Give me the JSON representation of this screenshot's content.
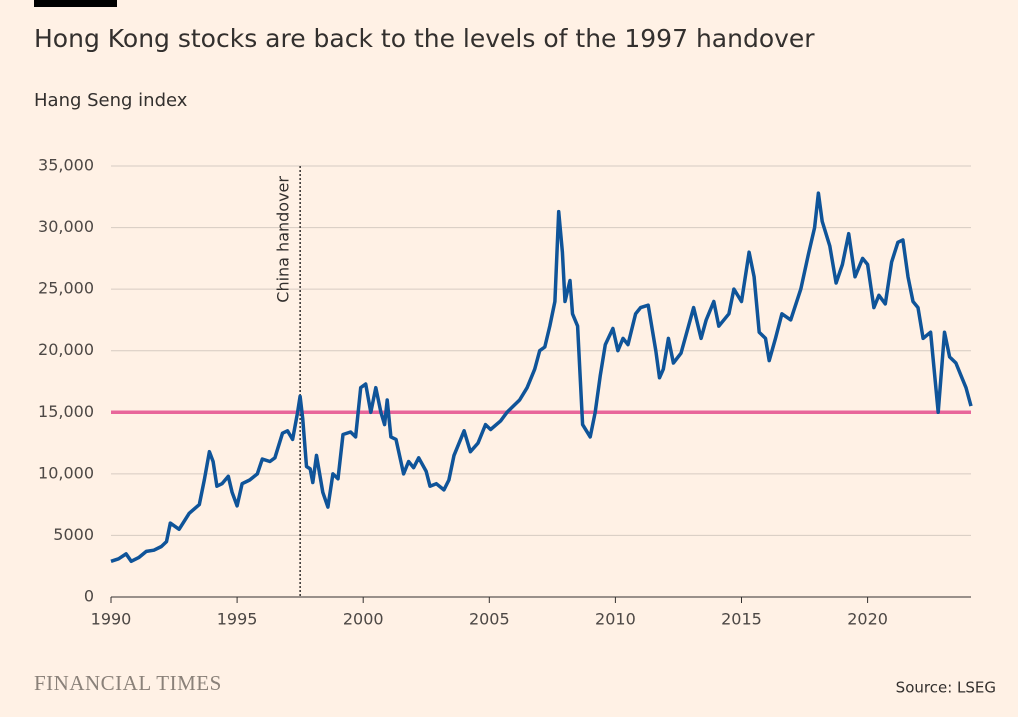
{
  "chart_data": {
    "type": "line",
    "title": "Hong Kong stocks are back to the levels of the 1997 handover",
    "subtitle": "Hang Seng index",
    "brand": "FINANCIAL TIMES",
    "source": "Source: LSEG",
    "annotation": {
      "x": 1997.5,
      "label": "China handover"
    },
    "reference_line": {
      "value": 15000,
      "color": "#e8669a"
    },
    "xlim": [
      1990,
      2024.1
    ],
    "xticks": [
      1990,
      1995,
      2000,
      2005,
      2010,
      2015,
      2020
    ],
    "ylim": [
      0,
      35000
    ],
    "yticks": [
      0,
      5000,
      {
        "value": 10000,
        "label": "10,000"
      },
      {
        "value": 15000,
        "label": "15,000"
      },
      {
        "value": 20000,
        "label": "20,000"
      },
      {
        "value": 25000,
        "label": "25,000"
      },
      {
        "value": 30000,
        "label": "30,000"
      },
      {
        "value": 35000,
        "label": "35,000"
      }
    ],
    "grid": true,
    "x": [
      1990.0,
      1990.3,
      1990.6,
      1990.8,
      1991.1,
      1991.4,
      1991.7,
      1992.0,
      1992.2,
      1992.35,
      1992.7,
      1993.1,
      1993.5,
      1993.7,
      1993.9,
      1994.05,
      1994.2,
      1994.4,
      1994.65,
      1994.8,
      1995.0,
      1995.2,
      1995.5,
      1995.8,
      1996.0,
      1996.3,
      1996.5,
      1996.8,
      1997.0,
      1997.2,
      1997.4,
      1997.5,
      1997.6,
      1997.75,
      1997.9,
      1998.0,
      1998.15,
      1998.4,
      1998.6,
      1998.8,
      1999.0,
      1999.2,
      1999.5,
      1999.7,
      1999.9,
      2000.1,
      2000.3,
      2000.5,
      2000.7,
      2000.85,
      2000.95,
      2001.1,
      2001.3,
      2001.6,
      2001.8,
      2002.0,
      2002.2,
      2002.5,
      2002.65,
      2002.9,
      2003.2,
      2003.4,
      2003.6,
      2004.0,
      2004.25,
      2004.55,
      2004.85,
      2005.05,
      2005.45,
      2005.7,
      2005.9,
      2006.2,
      2006.5,
      2006.8,
      2007.0,
      2007.2,
      2007.4,
      2007.6,
      2007.75,
      2007.9,
      2008.0,
      2008.2,
      2008.3,
      2008.5,
      2008.7,
      2009.0,
      2009.2,
      2009.4,
      2009.6,
      2009.9,
      2010.1,
      2010.3,
      2010.5,
      2010.8,
      2011.0,
      2011.3,
      2011.6,
      2011.75,
      2011.9,
      2012.1,
      2012.3,
      2012.6,
      2012.9,
      2013.1,
      2013.4,
      2013.6,
      2013.9,
      2014.1,
      2014.5,
      2014.7,
      2015.0,
      2015.3,
      2015.5,
      2015.7,
      2015.95,
      2016.1,
      2016.35,
      2016.6,
      2016.95,
      2017.35,
      2017.65,
      2017.9,
      2018.05,
      2018.2,
      2018.5,
      2018.75,
      2019.0,
      2019.25,
      2019.5,
      2019.8,
      2020.0,
      2020.25,
      2020.45,
      2020.7,
      2020.95,
      2021.2,
      2021.4,
      2021.6,
      2021.8,
      2022.0,
      2022.2,
      2022.5,
      2022.8,
      2023.05,
      2023.25,
      2023.5,
      2023.7,
      2023.9,
      2024.1
    ],
    "series": [
      {
        "name": "Hang Seng index",
        "color": "#0f5499",
        "values": [
          2900,
          3100,
          3500,
          2900,
          3200,
          3700,
          3800,
          4100,
          4500,
          6000,
          5500,
          6800,
          7500,
          9500,
          11800,
          11000,
          9000,
          9200,
          9800,
          8500,
          7400,
          9200,
          9500,
          10000,
          11200,
          11000,
          11300,
          13300,
          13500,
          12800,
          15000,
          16300,
          14500,
          10600,
          10400,
          9300,
          11500,
          8500,
          7300,
          10000,
          9600,
          13200,
          13400,
          13000,
          17000,
          17300,
          15000,
          17000,
          15000,
          14000,
          16000,
          13000,
          12800,
          10000,
          11000,
          10500,
          11300,
          10200,
          9000,
          9200,
          8700,
          9500,
          11500,
          13500,
          11800,
          12500,
          14000,
          13600,
          14300,
          15000,
          15400,
          16000,
          17000,
          18500,
          20000,
          20300,
          22000,
          24000,
          31300,
          28000,
          24000,
          25700,
          23000,
          22000,
          14000,
          13000,
          15000,
          18000,
          20500,
          21800,
          20000,
          21000,
          20500,
          23000,
          23500,
          23700,
          20000,
          17800,
          18500,
          21000,
          19000,
          19800,
          22000,
          23500,
          21000,
          22500,
          24000,
          22000,
          23000,
          25000,
          24000,
          28000,
          26000,
          21500,
          21000,
          19200,
          21000,
          23000,
          22500,
          25000,
          27800,
          30000,
          32800,
          30500,
          28500,
          25500,
          27000,
          29500,
          26000,
          27500,
          27000,
          23500,
          24500,
          23800,
          27200,
          28800,
          29000,
          26000,
          24000,
          23500,
          21000,
          21500,
          15000,
          21500,
          19500,
          19000,
          18000,
          17000,
          15500
        ]
      }
    ]
  }
}
